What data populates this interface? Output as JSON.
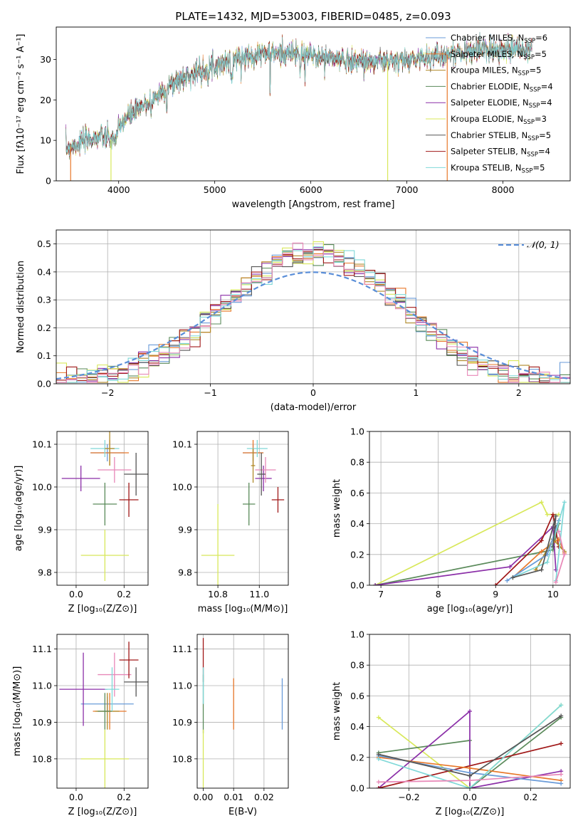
{
  "colors": {
    "chab_miles": "#6a9bd8",
    "salp_miles": "#e8782a",
    "krou_miles": "#b08a2a",
    "chab_elodie": "#5a8a5a",
    "salp_elodie": "#8b2fa8",
    "krou_elodie": "#d8e85a",
    "chab_stelib": "#555555",
    "salp_stelib": "#a01818",
    "krou_stelib": "#7fd8d8",
    "pink": "#e888b8",
    "gauss": "#5a8ed8"
  },
  "chart_data": [
    {
      "id": "spectrum",
      "type": "line",
      "title": "PLATE=1432, MJD=53003, FIBERID=0485, z=0.093",
      "xlabel": "wavelength [Angstrom, rest frame]",
      "ylabel": "Flux [fλ10⁻¹⁷ erg cm⁻² s⁻¹ A⁻¹]",
      "xlim": [
        3350,
        8700
      ],
      "ylim": [
        0,
        38
      ],
      "xticks": [
        4000,
        5000,
        6000,
        7000,
        8000
      ],
      "yticks": [
        0,
        10,
        20,
        30
      ],
      "legend_position": "top-right",
      "series": [
        {
          "name": "Chabrier MILES, N_SSP=6",
          "color_key": "chab_miles"
        },
        {
          "name": "Salpeter MILES, N_SSP=5",
          "color_key": "salp_miles"
        },
        {
          "name": "Kroupa MILES, N_SSP=5",
          "color_key": "krou_miles"
        },
        {
          "name": "Chabrier ELODIE, N_SSP=4",
          "color_key": "chab_elodie"
        },
        {
          "name": "Salpeter ELODIE, N_SSP=4",
          "color_key": "salp_elodie"
        },
        {
          "name": "Kroupa ELODIE, N_SSP=3",
          "color_key": "krou_elodie"
        },
        {
          "name": "Chabrier STELIB, N_SSP=5",
          "color_key": "chab_stelib"
        },
        {
          "name": "Salpeter STELIB, N_SSP=4",
          "color_key": "salp_stelib"
        },
        {
          "name": "Kroupa STELIB, N_SSP=5",
          "color_key": "krou_stelib"
        }
      ],
      "continuum": [
        [
          3450,
          8
        ],
        [
          3600,
          9.5
        ],
        [
          3800,
          11
        ],
        [
          3950,
          10
        ],
        [
          4050,
          15
        ],
        [
          4200,
          17.5
        ],
        [
          4400,
          21
        ],
        [
          4600,
          24.5
        ],
        [
          4800,
          27
        ],
        [
          5000,
          28.5
        ],
        [
          5200,
          30
        ],
        [
          5500,
          31.5
        ],
        [
          5800,
          31.5
        ],
        [
          6000,
          31
        ],
        [
          6300,
          30
        ],
        [
          6600,
          29.5
        ],
        [
          6900,
          29.5
        ],
        [
          7200,
          30.5
        ],
        [
          7500,
          31.5
        ],
        [
          7800,
          32.5
        ],
        [
          8000,
          32.5
        ],
        [
          8300,
          32.5
        ]
      ],
      "drop_lines": [
        [
          3500,
          "salp_miles"
        ],
        [
          3920,
          "krou_elodie"
        ],
        [
          6800,
          "krou_elodie"
        ],
        [
          7420,
          "salp_miles"
        ]
      ]
    },
    {
      "id": "residuals",
      "type": "histogram",
      "xlabel": "(data-model)/error",
      "ylabel": "Normed distribution",
      "xlim": [
        -2.5,
        2.5
      ],
      "ylim": [
        0,
        0.55
      ],
      "xticks": [
        -2,
        -1,
        0,
        1,
        2
      ],
      "yticks": [
        0.0,
        0.1,
        0.2,
        0.3,
        0.4,
        0.5
      ],
      "legend": "𝒩(0, 1)",
      "legend_position": "top-right",
      "bin_width": 0.1
    },
    {
      "id": "age_vs_z",
      "type": "scatter",
      "xlabel": "Z [log₁₀(Z/Z⊙)]",
      "ylabel": "age  [log₁₀(age/yr)]",
      "xlim": [
        -0.08,
        0.3
      ],
      "ylim": [
        9.77,
        10.13
      ],
      "xticks": [
        0.0,
        0.2
      ],
      "yticks": [
        9.8,
        9.9,
        10.0,
        10.1
      ],
      "points": [
        {
          "x": 0.13,
          "y": 10.08,
          "ex": 0.07,
          "ey": 0.02,
          "c": "chab_miles"
        },
        {
          "x": 0.14,
          "y": 10.08,
          "ex": 0.08,
          "ey": 0.03,
          "c": "salp_miles"
        },
        {
          "x": 0.12,
          "y": 10.09,
          "ex": 0.06,
          "ey": 0.02,
          "c": "krou_stelib"
        },
        {
          "x": 0.02,
          "y": 10.02,
          "ex": 0.08,
          "ey": 0.03,
          "c": "salp_elodie"
        },
        {
          "x": 0.16,
          "y": 10.04,
          "ex": 0.07,
          "ey": 0.03,
          "c": "pink"
        },
        {
          "x": 0.25,
          "y": 10.03,
          "ex": 0.05,
          "ey": 0.05,
          "c": "chab_stelib"
        },
        {
          "x": 0.22,
          "y": 9.97,
          "ex": 0.04,
          "ey": 0.04,
          "c": "salp_stelib"
        },
        {
          "x": 0.12,
          "y": 9.96,
          "ex": 0.05,
          "ey": 0.05,
          "c": "chab_elodie"
        },
        {
          "x": 0.12,
          "y": 9.84,
          "ex": 0.1,
          "ey": 0.06,
          "c": "krou_elodie"
        },
        {
          "x": 0.14,
          "y": 10.09,
          "ex": 0.02,
          "ey": 0.04,
          "c": "krou_miles"
        }
      ]
    },
    {
      "id": "age_vs_mass",
      "type": "scatter",
      "xlabel": "mass [log₁₀(M/M⊙)]",
      "ylabel": "",
      "xlim": [
        10.7,
        11.14
      ],
      "ylim": [
        9.77,
        10.13
      ],
      "xticks": [
        10.8,
        11.0
      ],
      "yticks": [
        9.8,
        9.9,
        10.0,
        10.1
      ],
      "points": [
        {
          "x": 10.97,
          "y": 10.08,
          "ex": 0.05,
          "ey": 0.02,
          "c": "chab_miles"
        },
        {
          "x": 10.97,
          "y": 10.08,
          "ex": 0.05,
          "ey": 0.03,
          "c": "salp_miles"
        },
        {
          "x": 10.99,
          "y": 10.09,
          "ex": 0.05,
          "ey": 0.02,
          "c": "krou_stelib"
        },
        {
          "x": 11.02,
          "y": 10.02,
          "ex": 0.04,
          "ey": 0.03,
          "c": "salp_elodie"
        },
        {
          "x": 11.03,
          "y": 10.04,
          "ex": 0.05,
          "ey": 0.03,
          "c": "pink"
        },
        {
          "x": 11.01,
          "y": 10.03,
          "ex": 0.02,
          "ey": 0.05,
          "c": "chab_stelib"
        },
        {
          "x": 11.09,
          "y": 9.97,
          "ex": 0.03,
          "ey": 0.03,
          "c": "salp_stelib"
        },
        {
          "x": 10.95,
          "y": 9.96,
          "ex": 0.03,
          "ey": 0.05,
          "c": "chab_elodie"
        },
        {
          "x": 10.8,
          "y": 9.84,
          "ex": 0.08,
          "ey": 0.12,
          "c": "krou_elodie"
        },
        {
          "x": 10.97,
          "y": 10.05,
          "ex": 0.01,
          "ey": 0.04,
          "c": "krou_miles"
        }
      ]
    },
    {
      "id": "weight_vs_age",
      "type": "line",
      "xlabel": "age  [log₁₀(age/yr)]",
      "ylabel": "mass weight",
      "xlim": [
        6.8,
        10.3
      ],
      "ylim": [
        0,
        1
      ],
      "xticks": [
        7,
        8,
        9,
        10
      ],
      "yticks": [
        0.0,
        0.2,
        0.4,
        0.6,
        0.8,
        1.0
      ],
      "series": [
        {
          "c": "krou_elodie",
          "pts": [
            [
              6.9,
              0.0
            ],
            [
              9.8,
              0.54
            ],
            [
              9.9,
              0.46
            ],
            [
              10.1,
              0.46
            ]
          ]
        },
        {
          "c": "chab_elodie",
          "pts": [
            [
              6.9,
              0.0
            ],
            [
              10.0,
              0.23
            ],
            [
              10.1,
              0.4
            ],
            [
              10.0,
              0.37
            ]
          ]
        },
        {
          "c": "salp_elodie",
          "pts": [
            [
              6.9,
              0.0
            ],
            [
              9.25,
              0.12
            ],
            [
              10.0,
              0.38
            ],
            [
              10.05,
              0.1
            ]
          ]
        },
        {
          "c": "salp_stelib",
          "pts": [
            [
              9.0,
              0.0
            ],
            [
              9.8,
              0.29
            ],
            [
              10.0,
              0.46
            ],
            [
              10.1,
              0.25
            ]
          ]
        },
        {
          "c": "salp_miles",
          "pts": [
            [
              9.3,
              0.05
            ],
            [
              9.8,
              0.22
            ],
            [
              10.1,
              0.3
            ],
            [
              10.2,
              0.21
            ]
          ]
        },
        {
          "c": "krou_miles",
          "pts": [
            [
              9.7,
              0.1
            ],
            [
              10.0,
              0.3
            ],
            [
              10.2,
              0.22
            ]
          ]
        },
        {
          "c": "chab_miles",
          "pts": [
            [
              9.2,
              0.03
            ],
            [
              9.9,
              0.2
            ],
            [
              10.1,
              0.42
            ]
          ]
        },
        {
          "c": "krou_stelib",
          "pts": [
            [
              9.3,
              0.05
            ],
            [
              9.9,
              0.15
            ],
            [
              10.2,
              0.54
            ],
            [
              10.05,
              0.03
            ]
          ]
        },
        {
          "c": "chab_stelib",
          "pts": [
            [
              9.3,
              0.05
            ],
            [
              9.8,
              0.1
            ],
            [
              10.05,
              0.45
            ],
            [
              10.0,
              0.25
            ]
          ]
        },
        {
          "c": "pink",
          "pts": [
            [
              10.1,
              0.35
            ],
            [
              10.2,
              0.2
            ],
            [
              10.05,
              0.02
            ]
          ]
        }
      ]
    },
    {
      "id": "mass_vs_z",
      "type": "scatter",
      "xlabel": "Z [log₁₀(Z/Z⊙)]",
      "ylabel": "mass [log₁₀(M/M⊙)]",
      "xlim": [
        -0.08,
        0.3
      ],
      "ylim": [
        10.72,
        11.14
      ],
      "xticks": [
        0.0,
        0.2
      ],
      "yticks": [
        10.8,
        10.9,
        11.0,
        11.1
      ],
      "points": [
        {
          "x": 0.13,
          "y": 10.95,
          "ex": 0.11,
          "ey": 0.02,
          "c": "chab_miles"
        },
        {
          "x": 0.14,
          "y": 10.93,
          "ex": 0.07,
          "ey": 0.05,
          "c": "salp_miles"
        },
        {
          "x": 0.13,
          "y": 10.93,
          "ex": 0.05,
          "ey": 0.05,
          "c": "krou_miles"
        },
        {
          "x": 0.03,
          "y": 10.99,
          "ex": 0.1,
          "ey": 0.1,
          "c": "salp_elodie"
        },
        {
          "x": 0.16,
          "y": 11.03,
          "ex": 0.07,
          "ey": 0.06,
          "c": "pink"
        },
        {
          "x": 0.25,
          "y": 11.01,
          "ex": 0.05,
          "ey": 0.04,
          "c": "chab_stelib"
        },
        {
          "x": 0.22,
          "y": 11.07,
          "ex": 0.04,
          "ey": 0.05,
          "c": "salp_stelib"
        },
        {
          "x": 0.12,
          "y": 10.93,
          "ex": 0.03,
          "ey": 0.05,
          "c": "chab_elodie"
        },
        {
          "x": 0.12,
          "y": 10.8,
          "ex": 0.1,
          "ey": 0.08,
          "c": "krou_elodie"
        },
        {
          "x": 0.15,
          "y": 10.99,
          "ex": 0.03,
          "ey": 0.06,
          "c": "krou_stelib"
        }
      ]
    },
    {
      "id": "mass_vs_ebv",
      "type": "scatter",
      "xlabel": "E(B-V)",
      "ylabel": "",
      "xlim": [
        -0.002,
        0.028
      ],
      "ylim": [
        10.72,
        11.14
      ],
      "xticks": [
        0.0,
        0.01,
        0.02
      ],
      "yticks": [
        10.8,
        10.9,
        11.0,
        11.1
      ],
      "points": [
        {
          "x": 0.0,
          "y": 11.07,
          "ex": 0,
          "ey": 0.06,
          "c": "salp_stelib"
        },
        {
          "x": 0.0,
          "y": 10.95,
          "ex": 0,
          "ey": 0.08,
          "c": "chab_elodie"
        },
        {
          "x": 0.0,
          "y": 10.8,
          "ex": 0,
          "ey": 0.08,
          "c": "krou_elodie"
        },
        {
          "x": 0.0,
          "y": 11.0,
          "ex": 0,
          "ey": 0.05,
          "c": "krou_stelib"
        },
        {
          "x": 0.01,
          "y": 10.95,
          "ex": 0,
          "ey": 0.07,
          "c": "salp_miles"
        },
        {
          "x": 0.026,
          "y": 10.95,
          "ex": 0,
          "ey": 0.07,
          "c": "chab_miles"
        }
      ]
    },
    {
      "id": "weight_vs_z",
      "type": "line",
      "xlabel": "Z [log₁₀(Z/Z⊙)]",
      "ylabel": "mass weight",
      "xlim": [
        -0.33,
        0.33
      ],
      "ylim": [
        0,
        1
      ],
      "xticks": [
        -0.2,
        0.0,
        0.2
      ],
      "yticks": [
        0.0,
        0.2,
        0.4,
        0.6,
        0.8,
        1.0
      ],
      "series": [
        {
          "c": "krou_elodie",
          "pts": [
            [
              -0.3,
              0.46
            ],
            [
              0.0,
              0.0
            ],
            [
              0.3,
              0.54
            ]
          ]
        },
        {
          "c": "chab_elodie",
          "pts": [
            [
              -0.3,
              0.23
            ],
            [
              0.0,
              0.31
            ],
            [
              0.0,
              0.0
            ],
            [
              0.3,
              0.46
            ]
          ]
        },
        {
          "c": "salp_elodie",
          "pts": [
            [
              -0.3,
              0.0
            ],
            [
              0.0,
              0.5
            ],
            [
              0.0,
              0.0
            ],
            [
              0.3,
              0.11
            ]
          ]
        },
        {
          "c": "salp_stelib",
          "pts": [
            [
              -0.3,
              0.0
            ],
            [
              0.3,
              0.29
            ]
          ]
        },
        {
          "c": "salp_miles",
          "pts": [
            [
              -0.3,
              0.2
            ],
            [
              0.0,
              0.13
            ],
            [
              0.3,
              0.05
            ]
          ]
        },
        {
          "c": "chab_miles",
          "pts": [
            [
              -0.3,
              0.21
            ],
            [
              0.0,
              0.1
            ],
            [
              0.3,
              0.03
            ]
          ]
        },
        {
          "c": "krou_stelib",
          "pts": [
            [
              -0.3,
              0.19
            ],
            [
              0.0,
              0.0
            ],
            [
              0.3,
              0.54
            ]
          ]
        },
        {
          "c": "chab_stelib",
          "pts": [
            [
              -0.3,
              0.22
            ],
            [
              0.0,
              0.08
            ],
            [
              0.3,
              0.47
            ]
          ]
        },
        {
          "c": "pink",
          "pts": [
            [
              -0.3,
              0.04
            ],
            [
              0.0,
              0.05
            ],
            [
              0.3,
              0.09
            ]
          ]
        }
      ]
    }
  ]
}
